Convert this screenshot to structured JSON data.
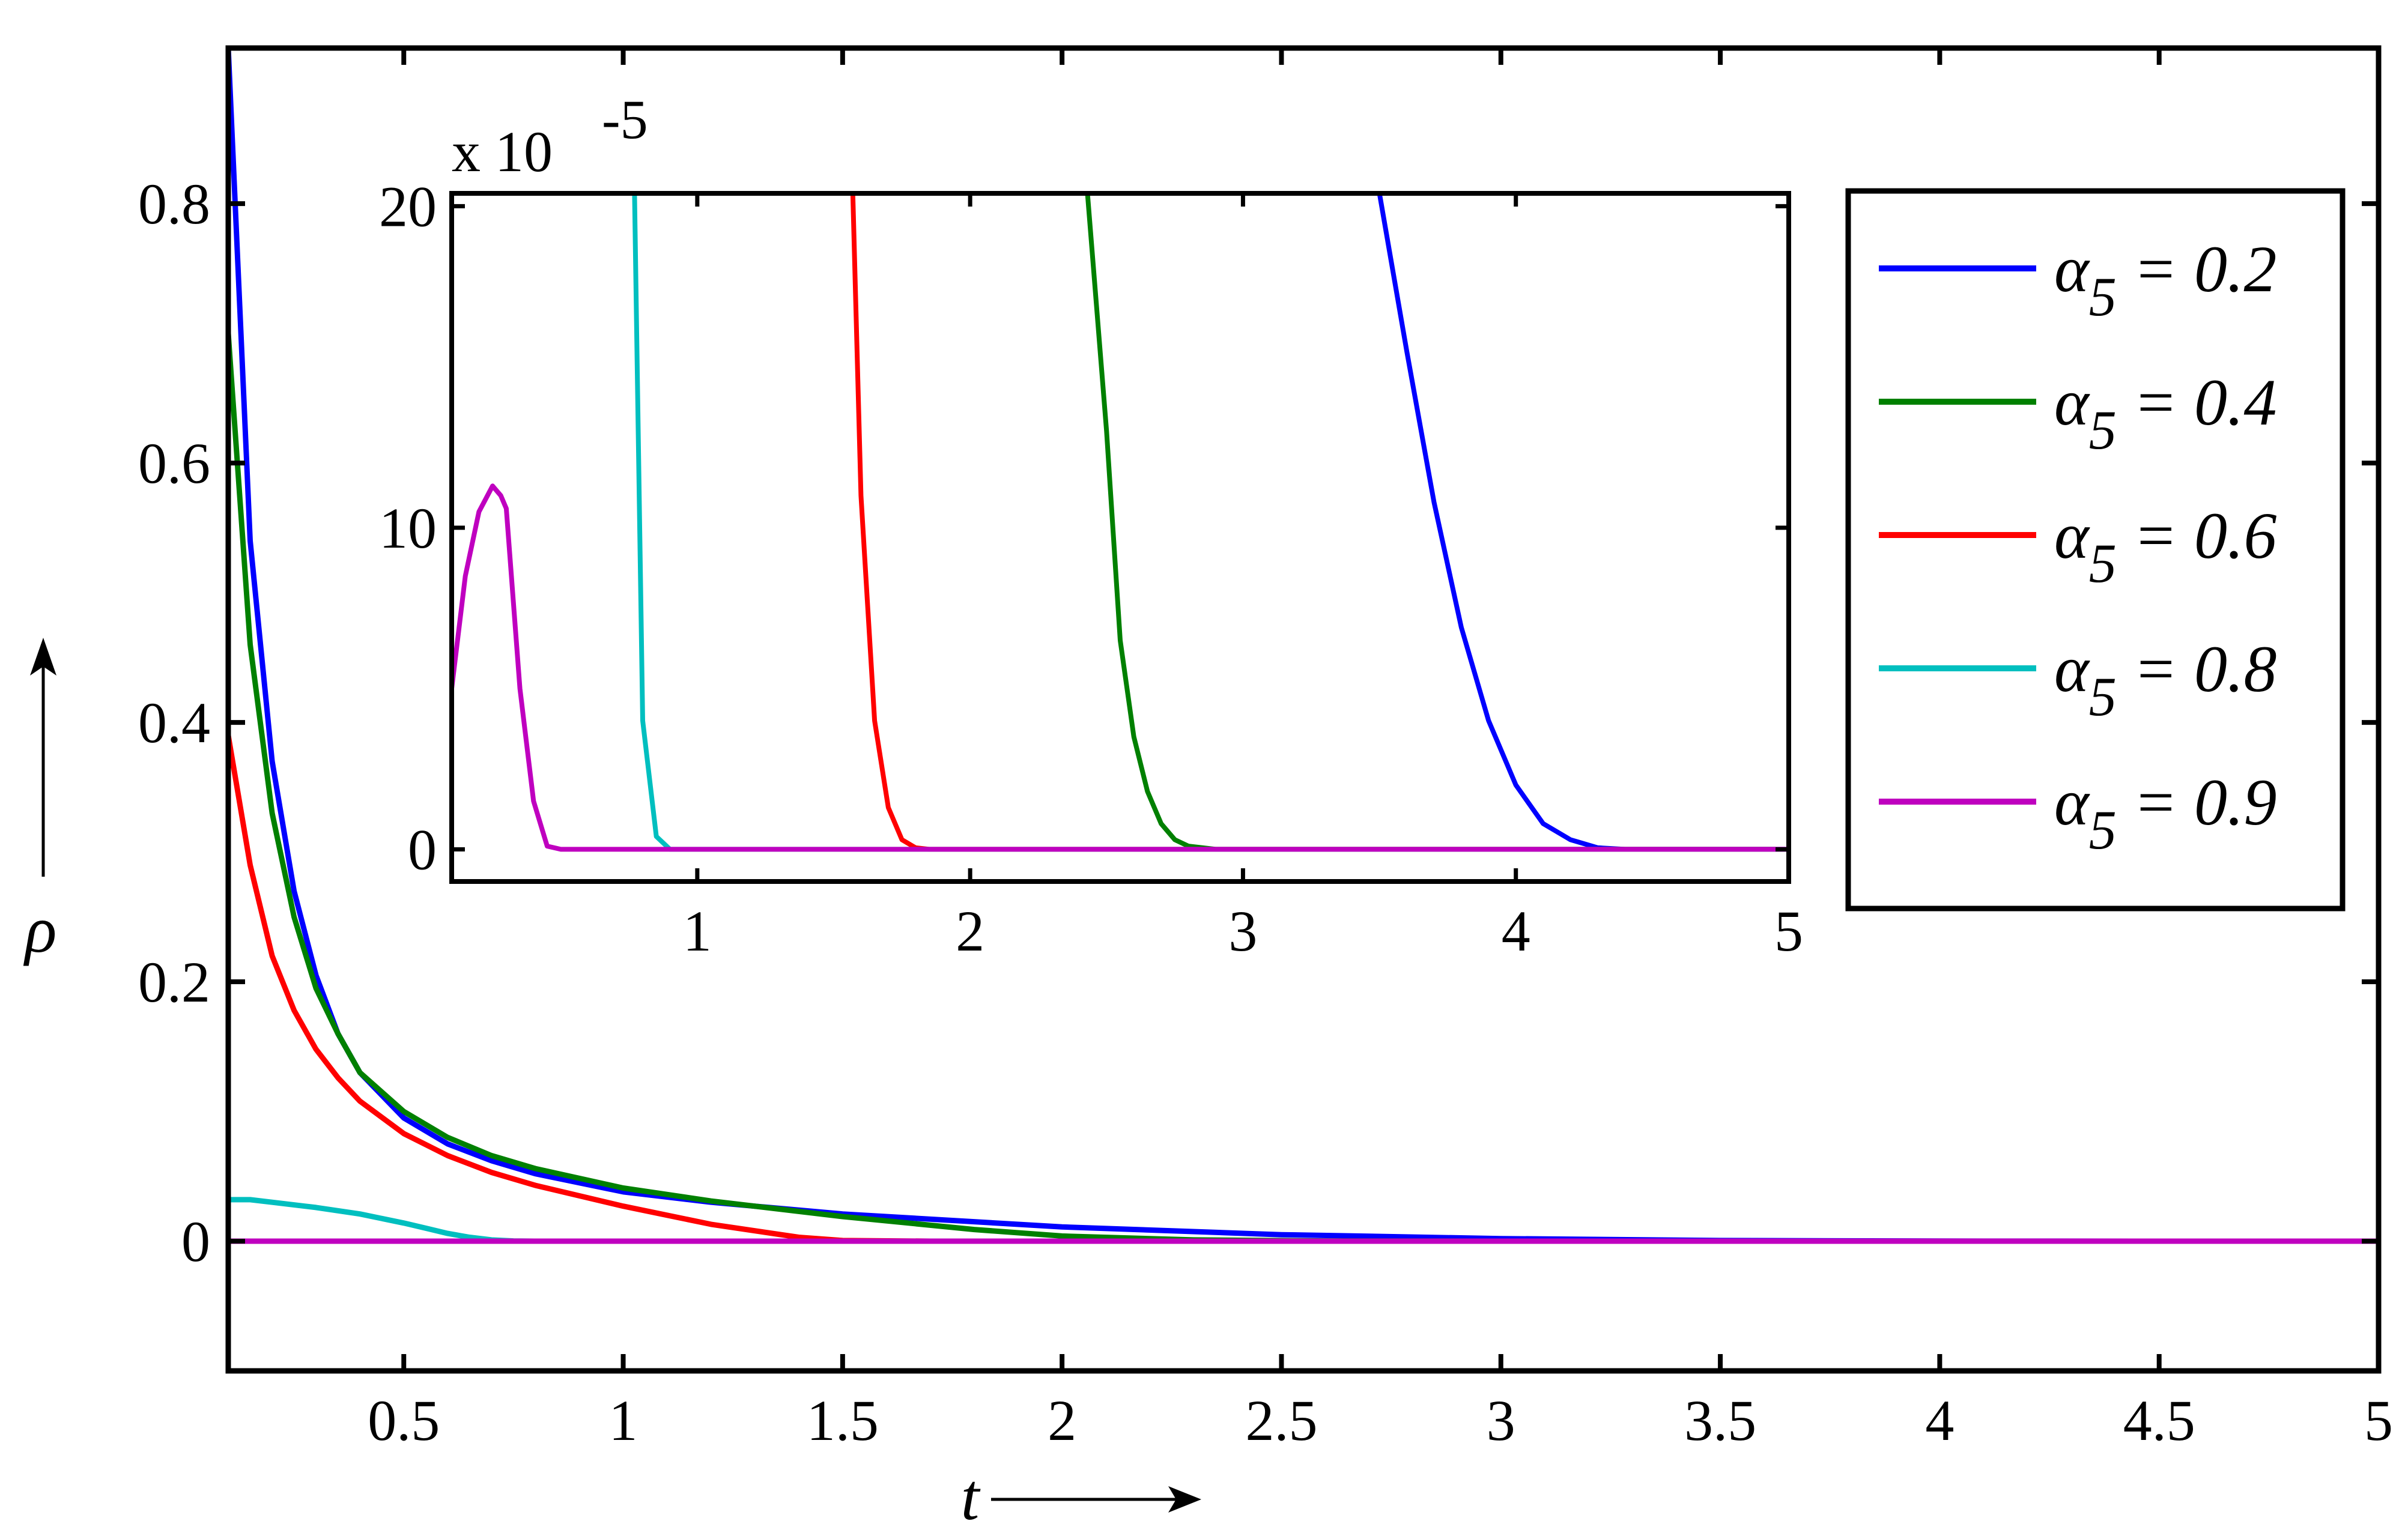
{
  "chart_data": [
    {
      "type": "line",
      "xlabel": "t",
      "ylabel": "ρ",
      "xlim": [
        0.1,
        5
      ],
      "ylim": [
        -0.1,
        0.92
      ],
      "x_ticks": [
        0.5,
        1,
        1.5,
        2,
        2.5,
        3,
        3.5,
        4,
        4.5,
        5
      ],
      "x_tick_labels": [
        "0.5",
        "1",
        "1.5",
        "2",
        "2.5",
        "3",
        "3.5",
        "4",
        "4.5",
        "5"
      ],
      "y_ticks": [
        0,
        0.2,
        0.4,
        0.6,
        0.8
      ],
      "y_tick_labels": [
        "0",
        "0.2",
        "0.4",
        "0.6",
        "0.8"
      ],
      "grid": false,
      "legend_position": "right",
      "series": [
        {
          "name": "α5 = 0.2",
          "color": "#0000ff",
          "x": [
            0.1,
            0.15,
            0.2,
            0.25,
            0.3,
            0.35,
            0.4,
            0.5,
            0.6,
            0.7,
            0.8,
            1.0,
            1.2,
            1.5,
            2.0,
            2.5,
            3.0,
            3.5,
            4.0,
            4.5,
            5.0
          ],
          "y": [
            0.92,
            0.54,
            0.37,
            0.27,
            0.205,
            0.16,
            0.13,
            0.095,
            0.075,
            0.062,
            0.052,
            0.038,
            0.03,
            0.021,
            0.011,
            0.005,
            0.002,
            0.0005,
            0.0001,
            0,
            0
          ]
        },
        {
          "name": "α5 = 0.4",
          "color": "#008000",
          "x": [
            0.1,
            0.15,
            0.2,
            0.25,
            0.3,
            0.35,
            0.4,
            0.5,
            0.6,
            0.7,
            0.8,
            1.0,
            1.2,
            1.5,
            1.8,
            2.0,
            2.3,
            2.6,
            3.0,
            5.0
          ],
          "y": [
            0.7,
            0.46,
            0.33,
            0.25,
            0.195,
            0.16,
            0.13,
            0.1,
            0.08,
            0.066,
            0.056,
            0.041,
            0.031,
            0.019,
            0.009,
            0.004,
            0.001,
            0.0002,
            0,
            0
          ]
        },
        {
          "name": "α5 = 0.6",
          "color": "#ff0000",
          "x": [
            0.1,
            0.15,
            0.2,
            0.25,
            0.3,
            0.35,
            0.4,
            0.5,
            0.6,
            0.7,
            0.8,
            1.0,
            1.2,
            1.4,
            1.5,
            1.7,
            2.0,
            5.0
          ],
          "y": [
            0.39,
            0.29,
            0.22,
            0.178,
            0.148,
            0.126,
            0.108,
            0.083,
            0.066,
            0.053,
            0.043,
            0.027,
            0.013,
            0.003,
            0.0005,
            0,
            0,
            0
          ]
        },
        {
          "name": "α5 = 0.8",
          "color": "#00bfbf",
          "x": [
            0.1,
            0.15,
            0.2,
            0.3,
            0.4,
            0.5,
            0.55,
            0.6,
            0.65,
            0.7,
            0.75,
            0.8,
            5.0
          ],
          "y": [
            0.032,
            0.032,
            0.03,
            0.026,
            0.021,
            0.014,
            0.01,
            0.006,
            0.003,
            0.001,
            0.0002,
            0,
            0
          ]
        },
        {
          "name": "α5 = 0.9",
          "color": "#bf00bf",
          "x": [
            0.1,
            5.0
          ],
          "y": [
            0,
            0
          ]
        }
      ]
    },
    {
      "type": "line",
      "xlim": [
        0.1,
        5
      ],
      "ylim": [
        -1,
        20.4
      ],
      "exponent_label": "x 10",
      "exponent_power": "-5",
      "x_ticks": [
        1,
        2,
        3,
        4,
        5
      ],
      "x_tick_labels": [
        "1",
        "2",
        "3",
        "4",
        "5"
      ],
      "y_ticks": [
        0,
        10,
        20
      ],
      "y_tick_labels": [
        "0",
        "10",
        "20"
      ],
      "grid": false,
      "series": [
        {
          "name": "α5 = 0.2",
          "color": "#0000ff",
          "x": [
            3.5,
            3.6,
            3.7,
            3.8,
            3.9,
            4.0,
            4.1,
            4.2,
            4.3,
            4.4,
            5.0
          ],
          "y": [
            20.4,
            15.5,
            10.8,
            6.9,
            4.0,
            2.0,
            0.8,
            0.3,
            0.05,
            0,
            0
          ]
        },
        {
          "name": "α5 = 0.4",
          "color": "#008000",
          "x": [
            2.43,
            2.5,
            2.55,
            2.6,
            2.65,
            2.7,
            2.75,
            2.8,
            2.9,
            3.0,
            5.0
          ],
          "y": [
            20.4,
            13.0,
            6.5,
            3.5,
            1.8,
            0.8,
            0.3,
            0.1,
            0,
            0,
            0
          ]
        },
        {
          "name": "α5 = 0.6",
          "color": "#ff0000",
          "x": [
            1.57,
            1.6,
            1.65,
            1.7,
            1.75,
            1.8,
            1.85,
            5.0
          ],
          "y": [
            20.4,
            11.0,
            4.0,
            1.3,
            0.3,
            0.05,
            0,
            0
          ]
        },
        {
          "name": "α5 = 0.8",
          "color": "#00bfbf",
          "x": [
            0.77,
            0.8,
            0.85,
            0.9,
            5.0
          ],
          "y": [
            20.4,
            4.0,
            0.4,
            0,
            0
          ]
        },
        {
          "name": "α5 = 0.9",
          "color": "#bf00bf",
          "x": [
            0.1,
            0.15,
            0.2,
            0.25,
            0.28,
            0.3,
            0.35,
            0.4,
            0.45,
            0.5,
            5.0
          ],
          "y": [
            5.0,
            8.5,
            10.5,
            11.3,
            11.0,
            10.6,
            5.0,
            1.5,
            0.1,
            0,
            0
          ]
        }
      ]
    }
  ],
  "legend": {
    "symbol": "α",
    "subscript": "5",
    "items": [
      {
        "value": " = 0.2",
        "color": "#0000ff"
      },
      {
        "value": " = 0.4",
        "color": "#008000"
      },
      {
        "value": " = 0.6",
        "color": "#ff0000"
      },
      {
        "value": " = 0.8",
        "color": "#00bfbf"
      },
      {
        "value": " = 0.9",
        "color": "#bf00bf"
      }
    ]
  }
}
